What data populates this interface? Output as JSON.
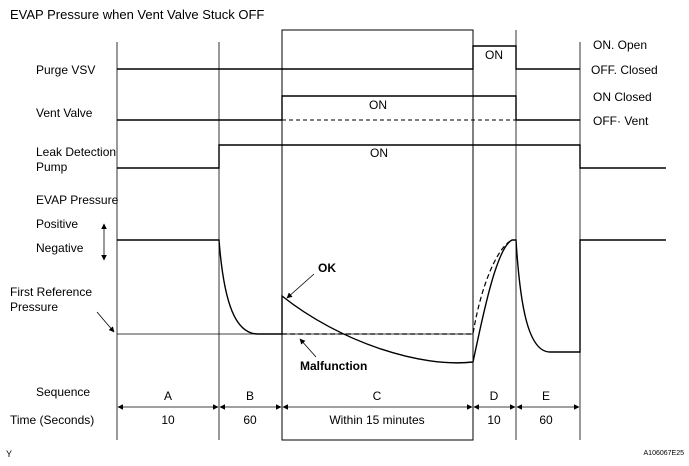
{
  "title": "EVAP Pressure when Vent Valve Stuck OFF",
  "signals": {
    "purge": {
      "label": "Purge VSV",
      "on_text": "ON",
      "state_on": "ON. Open",
      "state_off": "OFF. Closed"
    },
    "vent": {
      "label": "Vent Valve",
      "on_text": "ON",
      "state_on": "ON  Closed",
      "state_off": "OFF· Vent"
    },
    "pump": {
      "label_line1": "Leak Detection",
      "label_line2": "Pump",
      "on_text": "ON"
    },
    "evap": {
      "label": "EVAP Pressure",
      "positive": "Positive",
      "negative": "Negative",
      "ref_line1": "First Reference",
      "ref_line2": "Pressure",
      "ok_label": "OK",
      "malfunction_label": "Malfunction"
    }
  },
  "sequence": {
    "label": "Sequence",
    "steps": [
      "A",
      "B",
      "C",
      "D",
      "E"
    ]
  },
  "time": {
    "label": "Time (Seconds)",
    "values": [
      "10",
      "60",
      "Within 15 minutes",
      "10",
      "60"
    ]
  },
  "footer": {
    "left_mark": "Y",
    "code": "A106067E25"
  }
}
